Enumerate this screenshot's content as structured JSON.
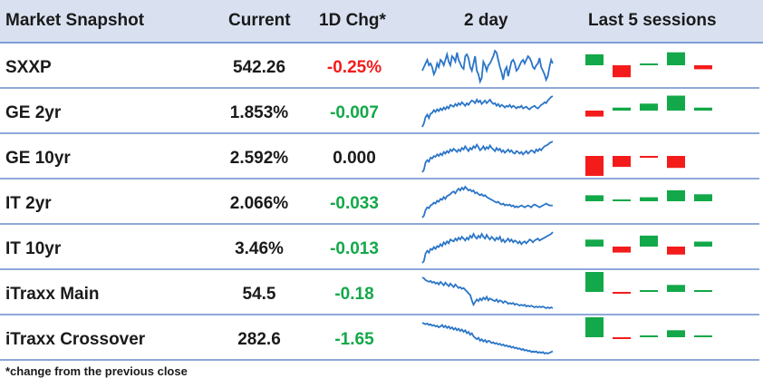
{
  "header": {
    "title": "Market Snapshot",
    "current": "Current",
    "change": "1D Chg*",
    "spark": "2 day",
    "sessions": "Last 5 sessions"
  },
  "colors": {
    "up": "#13a849",
    "down": "#f41b1b",
    "flat": "#1a1a1a",
    "line": "#2a75c8"
  },
  "rows": [
    {
      "name": "SXXP",
      "current": "542.26",
      "change": "-0.25%",
      "direction": "down",
      "spark": [
        40,
        44,
        48,
        52,
        46,
        48,
        44,
        36,
        40,
        48,
        44,
        52,
        50,
        46,
        52,
        58,
        50,
        46,
        56,
        54,
        50,
        60,
        52,
        48,
        44,
        42,
        56,
        58,
        54,
        44,
        40,
        48,
        56,
        40,
        36,
        28,
        32,
        50,
        46,
        40,
        46,
        48,
        52,
        56,
        62,
        60,
        52,
        44,
        38,
        30,
        40,
        44,
        34,
        42,
        50,
        52,
        48,
        40,
        42,
        46,
        50,
        52,
        48,
        52,
        56,
        54,
        50,
        44,
        42,
        46,
        48,
        54,
        44,
        40,
        36,
        30,
        34,
        44,
        52,
        48
      ],
      "sessions": [
        0.55,
        -0.6,
        0.02,
        0.65,
        -0.2
      ]
    },
    {
      "name": "GE 2yr",
      "current": "1.853%",
      "change": "-0.007",
      "direction": "up",
      "spark": [
        10,
        18,
        32,
        38,
        30,
        40,
        42,
        48,
        44,
        50,
        46,
        52,
        48,
        54,
        50,
        56,
        52,
        60,
        58,
        56,
        62,
        58,
        64,
        60,
        66,
        62,
        58,
        64,
        60,
        66,
        70,
        68,
        64,
        72,
        66,
        70,
        62,
        66,
        70,
        64,
        68,
        72,
        66,
        62,
        64,
        58,
        62,
        56,
        60,
        58,
        54,
        58,
        56,
        60,
        54,
        58,
        56,
        52,
        56,
        54,
        58,
        52,
        54,
        56,
        52,
        50,
        54,
        56,
        58,
        54,
        52,
        56,
        60,
        62,
        66,
        64,
        70,
        74,
        78,
        80
      ],
      "sessions": [
        -0.3,
        0.15,
        0.35,
        0.75,
        0.15
      ]
    },
    {
      "name": "GE 10yr",
      "current": "2.592%",
      "change": "0.000",
      "direction": "flat",
      "spark": [
        6,
        12,
        30,
        36,
        32,
        42,
        40,
        46,
        44,
        50,
        46,
        52,
        48,
        56,
        52,
        58,
        54,
        62,
        58,
        64,
        60,
        56,
        62,
        58,
        66,
        62,
        70,
        64,
        58,
        66,
        62,
        70,
        66,
        74,
        68,
        60,
        64,
        70,
        62,
        68,
        64,
        72,
        66,
        62,
        58,
        66,
        60,
        64,
        56,
        60,
        54,
        58,
        62,
        56,
        60,
        54,
        52,
        58,
        56,
        52,
        56,
        50,
        54,
        58,
        52,
        56,
        60,
        58,
        54,
        62,
        58,
        64,
        60,
        66,
        70,
        72,
        74,
        78,
        80,
        82
      ],
      "sessions": [
        -1.0,
        -0.55,
        -0.08,
        -0.6,
        0
      ]
    },
    {
      "name": "IT 2yr",
      "current": "2.066%",
      "change": "-0.033",
      "direction": "up",
      "spark": [
        8,
        12,
        24,
        30,
        28,
        34,
        36,
        40,
        38,
        44,
        42,
        48,
        46,
        52,
        48,
        54,
        56,
        58,
        62,
        64,
        60,
        66,
        70,
        66,
        72,
        68,
        74,
        70,
        66,
        68,
        64,
        66,
        60,
        62,
        58,
        56,
        58,
        54,
        56,
        52,
        50,
        48,
        46,
        44,
        42,
        40,
        42,
        38,
        36,
        38,
        34,
        36,
        34,
        36,
        32,
        34,
        30,
        32,
        30,
        32,
        34,
        32,
        30,
        32,
        34,
        32,
        30,
        34,
        36,
        34,
        32,
        30,
        32,
        34,
        36,
        38,
        36,
        34,
        34,
        34
      ],
      "sessions": [
        0.3,
        0.05,
        0.2,
        0.55,
        0.35
      ]
    },
    {
      "name": "IT 10yr",
      "current": "3.46%",
      "change": "-0.013",
      "direction": "up",
      "spark": [
        10,
        14,
        30,
        36,
        32,
        40,
        38,
        44,
        40,
        46,
        44,
        50,
        46,
        54,
        50,
        56,
        52,
        60,
        58,
        56,
        62,
        58,
        64,
        60,
        66,
        62,
        58,
        64,
        60,
        68,
        64,
        72,
        66,
        62,
        68,
        64,
        72,
        66,
        62,
        70,
        64,
        60,
        66,
        62,
        58,
        64,
        60,
        66,
        56,
        60,
        54,
        58,
        62,
        56,
        60,
        54,
        58,
        56,
        52,
        56,
        50,
        54,
        56,
        52,
        56,
        60,
        58,
        54,
        58,
        60,
        62,
        58,
        60,
        62,
        64,
        66,
        68,
        70,
        72,
        76
      ],
      "sessions": [
        0.35,
        -0.3,
        0.55,
        -0.4,
        0.25
      ]
    },
    {
      "name": "iTraxx Main",
      "current": "54.5",
      "change": "-0.18",
      "direction": "up",
      "spark": [
        80,
        78,
        74,
        72,
        70,
        72,
        68,
        70,
        66,
        68,
        64,
        70,
        66,
        62,
        68,
        64,
        60,
        66,
        62,
        58,
        64,
        60,
        56,
        58,
        54,
        56,
        52,
        48,
        44,
        40,
        28,
        18,
        24,
        30,
        26,
        32,
        28,
        34,
        30,
        36,
        28,
        32,
        30,
        28,
        26,
        30,
        24,
        28,
        26,
        22,
        26,
        24,
        20,
        22,
        20,
        22,
        18,
        20,
        18,
        16,
        18,
        16,
        18,
        14,
        16,
        14,
        16,
        14,
        12,
        14,
        12,
        14,
        12,
        14,
        12,
        10,
        12,
        10,
        12,
        10
      ],
      "sessions": [
        1.0,
        -0.08,
        0.08,
        0.35,
        0.02
      ]
    },
    {
      "name": "iTraxx Crossover",
      "current": "282.6",
      "change": "-1.65",
      "direction": "up",
      "spark": [
        90,
        88,
        86,
        88,
        84,
        86,
        82,
        84,
        80,
        82,
        78,
        80,
        84,
        78,
        82,
        76,
        80,
        74,
        78,
        72,
        76,
        70,
        74,
        68,
        72,
        66,
        70,
        62,
        66,
        58,
        62,
        54,
        50,
        46,
        50,
        42,
        46,
        40,
        44,
        38,
        42,
        40,
        36,
        38,
        34,
        36,
        32,
        34,
        30,
        32,
        28,
        30,
        26,
        28,
        24,
        26,
        22,
        24,
        20,
        22,
        18,
        20,
        16,
        18,
        14,
        16,
        12,
        14,
        12,
        14,
        10,
        12,
        10,
        12,
        8,
        10,
        8,
        10,
        12,
        14
      ],
      "sessions": [
        1.0,
        -0.08,
        0.08,
        0.35,
        0.08
      ]
    }
  ],
  "footnote": "*change from the previous close"
}
